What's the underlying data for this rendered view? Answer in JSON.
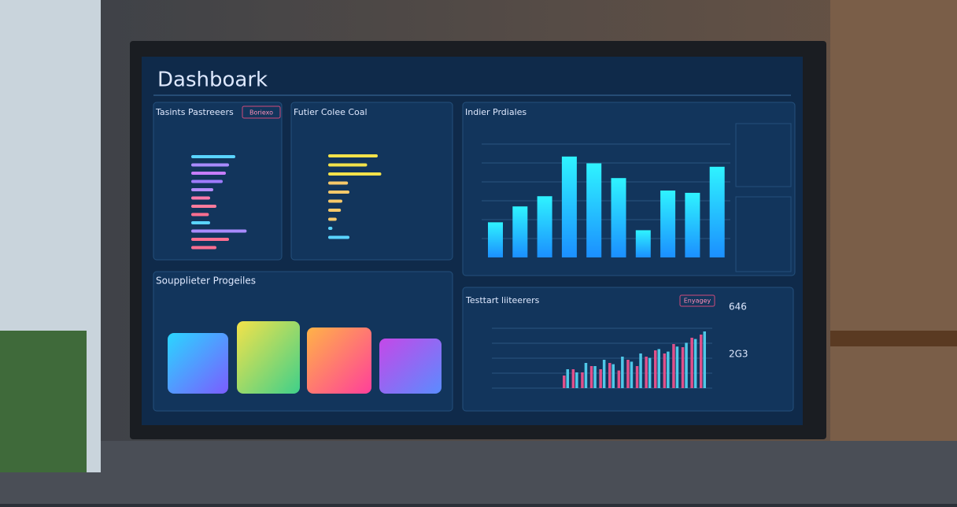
{
  "header": {
    "title": "Dashboark"
  },
  "panels": {
    "tasks": {
      "title": "Tasints Pastreeers",
      "badge": "Boriexo",
      "values": [
        70,
        60,
        55,
        50,
        35,
        30,
        40,
        28,
        30,
        88,
        60,
        40
      ]
    },
    "costs": {
      "title": "Futier Colee Coal",
      "values": [
        70,
        55,
        75,
        28,
        30,
        20,
        18,
        12,
        6,
        30
      ]
    },
    "profiles": {
      "title": "Indier Prdiales",
      "values": [
        31,
        45,
        54,
        89,
        83,
        70,
        24,
        59,
        57,
        80
      ]
    },
    "supplier": {
      "title": "Soupplieter Progeiles"
    },
    "trend": {
      "title": "Testtart liiteerers",
      "badge": "Enyagey",
      "series_a": [
        20,
        30,
        25,
        35,
        30,
        40,
        28,
        45,
        35,
        50,
        60,
        55,
        70,
        65,
        80,
        85
      ],
      "series_b": [
        30,
        25,
        40,
        35,
        45,
        38,
        50,
        42,
        55,
        48,
        62,
        58,
        66,
        72,
        78,
        90
      ]
    },
    "side": {
      "metric_a": "646",
      "metric_b": "2G3"
    }
  }
}
